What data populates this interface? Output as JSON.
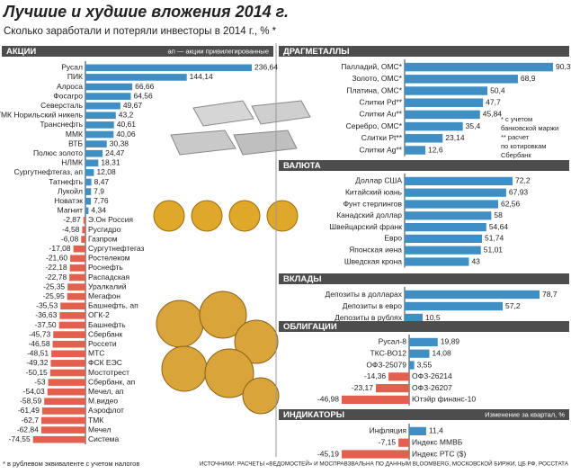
{
  "title": "Лучшие и худшие вложения 2014 г.",
  "subtitle": "Сколько заработали и потеряли инвесторы в 2014 г., % *",
  "footnote": "* в рублевом эквиваленте с учетом налогов",
  "source": "ИСТОЧНИКИ: РАСЧЕТЫ «ВЕДОМОСТЕЙ» И МОСПРАВЗВАЛЬНА ПО ДАННЫМ BLOOMBERG, МОСКОВСКОЙ БИРЖИ, ЦБ РФ, РОССТАТА",
  "chart_data": [
    {
      "type": "bar",
      "orientation": "horizontal",
      "title": "АКЦИИ",
      "note": "ап — акции привилегированные",
      "color": "#3f8fc5",
      "negative_color": "#e2604d",
      "categories": [
        "Русал",
        "ПИК",
        "Алроса",
        "Фосагро",
        "Северсталь",
        "ГМК Норильский никель",
        "Транснефть",
        "ММК",
        "ВТБ",
        "Полюс золото",
        "НЛМК",
        "Сургутнефтегаз, ап",
        "Татнефть",
        "Лукойл",
        "Новатэк",
        "Магнит",
        "Э.Он Россия",
        "Русгидро",
        "Газпром",
        "Сургутнефтегаз",
        "Ростелеком",
        "Роснефть",
        "Распадская",
        "Уралкалий",
        "Мегафон",
        "Башнефть, ап",
        "ОГК-2",
        "Башнефть",
        "Сбербанк",
        "Россети",
        "МТС",
        "ФСК ЕЭС",
        "Мостотрест",
        "Сбербанк, ап",
        "Мечел, ап",
        "М.видео",
        "Аэрофлот",
        "ТМК",
        "Мечел",
        "Система"
      ],
      "values": [
        236.64,
        144.14,
        66.66,
        64.56,
        49.67,
        43.2,
        40.61,
        40.06,
        30.38,
        24.47,
        18.31,
        12.08,
        8.47,
        7.9,
        7.76,
        4.34,
        -2.87,
        -4.58,
        -6.08,
        -17.08,
        -21.6,
        -22.18,
        -22.78,
        -25.35,
        -25.95,
        -35.53,
        -36.63,
        -37.5,
        -45.73,
        -46.58,
        -48.51,
        -49.32,
        -50.15,
        -53,
        -54.03,
        -58.59,
        -61.49,
        -62.7,
        -62.84,
        -74.55
      ],
      "value_labels": [
        "236,64",
        "144,14",
        "66,66",
        "64,56",
        "49,67",
        "43,2",
        "40,61",
        "40,06",
        "30,38",
        "24,47",
        "18,31",
        "12,08",
        "8,47",
        "7,9",
        "7,76",
        "4,34",
        "-2,87",
        "-4,58",
        "-6,08",
        "-17,08",
        "-21,60",
        "-22,18",
        "-22,78",
        "-25,35",
        "-25,95",
        "-35,53",
        "-36,63",
        "-37,50",
        "-45,73",
        "-46,58",
        "-48,51",
        "-49,32",
        "-50,15",
        "-53",
        "-54,03",
        "-58,59",
        "-61,49",
        "-62,7",
        "-62,84",
        "-74,55"
      ]
    },
    {
      "type": "bar",
      "orientation": "horizontal",
      "title": "ДРАГМЕТАЛЛЫ",
      "notes": [
        "* с учетом",
        "банковской маржи",
        "** расчет",
        "по котировкам",
        "Сбербанк"
      ],
      "color": "#3f8fc5",
      "negative_color": "#e2604d",
      "categories": [
        "Палладий, ОМС*",
        "Золото, ОМС*",
        "Платина, ОМС*",
        "Слитки Pd**",
        "Слитки Au**",
        "Серебро, ОМС*",
        "Слитки Pt**",
        "Слитки Ag**"
      ],
      "values": [
        90.3,
        68.9,
        50.4,
        47.7,
        45.84,
        35.4,
        23.14,
        12.6
      ],
      "value_labels": [
        "90,3",
        "68,9",
        "50,4",
        "47,7",
        "45,84",
        "35,4",
        "23,14",
        "12,6"
      ]
    },
    {
      "type": "bar",
      "orientation": "horizontal",
      "title": "ВАЛЮТА",
      "color": "#3f8fc5",
      "negative_color": "#e2604d",
      "categories": [
        "Доллар США",
        "Китайский юань",
        "Фунт стерлингов",
        "Канадский доллар",
        "Швейцарский франк",
        "Евро",
        "Японская иена",
        "Шведская крона"
      ],
      "values": [
        72.2,
        67.93,
        62.56,
        58,
        54.64,
        51.74,
        51.01,
        43
      ],
      "value_labels": [
        "72,2",
        "67,93",
        "62,56",
        "58",
        "54,64",
        "51,74",
        "51,01",
        "43"
      ]
    },
    {
      "type": "bar",
      "orientation": "horizontal",
      "title": "ВКЛАДЫ",
      "color": "#3f8fc5",
      "negative_color": "#e2604d",
      "categories": [
        "Депозиты в долларах",
        "Депозиты в евро",
        "Депозиты в рублях"
      ],
      "values": [
        78.7,
        57.2,
        10.5
      ],
      "value_labels": [
        "78,7",
        "57,2",
        "10,5"
      ]
    },
    {
      "type": "bar",
      "orientation": "horizontal",
      "title": "ОБЛИГАЦИИ",
      "color": "#3f8fc5",
      "negative_color": "#e2604d",
      "categories": [
        "Русал-8",
        "ТКС-ВО12",
        "ОФЗ-25079",
        "ОФЗ-26214",
        "ОФЗ-26207",
        "Ютэйр финанс-10"
      ],
      "values": [
        19.89,
        14.08,
        3.55,
        -14.36,
        -23.17,
        -46.98
      ],
      "value_labels": [
        "19,89",
        "14,08",
        "3,55",
        "-14,36",
        "-23,17",
        "-46,98"
      ]
    },
    {
      "type": "bar",
      "orientation": "horizontal",
      "title": "ИНДИКАТОРЫ",
      "note": "Изменение за квартал, %",
      "color": "#3f8fc5",
      "negative_color": "#e2604d",
      "categories": [
        "Инфляция",
        "Индекс ММВБ",
        "Индекс РТС ($)"
      ],
      "values": [
        11.4,
        -7.15,
        -45.19
      ],
      "value_labels": [
        "11,4",
        "-7,15",
        "-45,19"
      ]
    }
  ]
}
